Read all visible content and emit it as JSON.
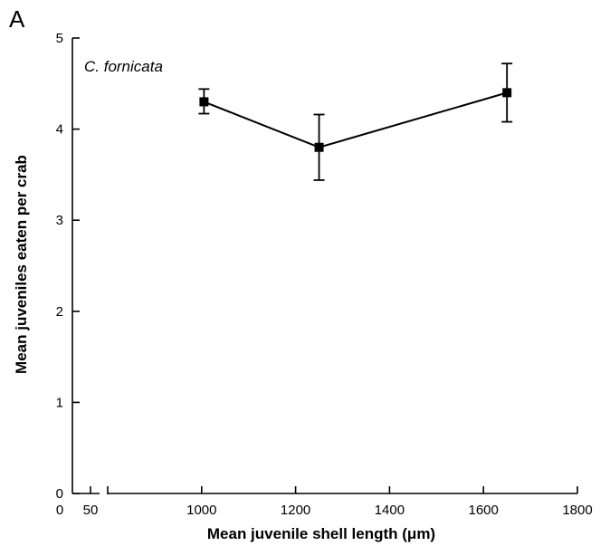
{
  "chart_data": {
    "type": "line",
    "panel_label": "A",
    "annotation": "C. fornicata",
    "xlabel": "Mean juvenile shell length (μm)",
    "ylabel": "Mean juveniles eaten per crab",
    "xlim": [
      0,
      1800
    ],
    "ylim": [
      0,
      5
    ],
    "x_axis_break": true,
    "x_ticks": [
      0,
      50,
      1000,
      1200,
      1400,
      1600,
      1800
    ],
    "x_tick_labels": [
      "0",
      "50",
      "1000",
      "1200",
      "1400",
      "1600",
      "1800"
    ],
    "y_ticks": [
      0,
      1,
      2,
      3,
      4,
      5
    ],
    "y_tick_labels": [
      "0",
      "1",
      "2",
      "3",
      "4",
      "5"
    ],
    "grid": false,
    "series": [
      {
        "x": [
          1005,
          1250,
          1650
        ],
        "y": [
          4.3,
          3.8,
          4.4
        ],
        "err_low": [
          4.17,
          3.44,
          4.08
        ],
        "err_high": [
          4.44,
          4.16,
          4.72
        ],
        "marker": "square",
        "color": "#000000"
      }
    ]
  }
}
